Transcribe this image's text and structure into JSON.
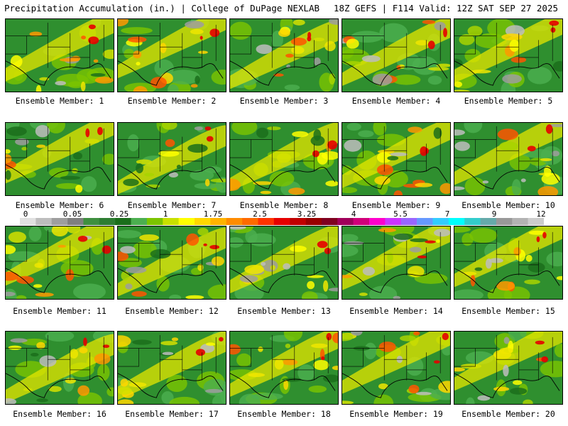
{
  "header": {
    "title": "Precipitation Accumulation (in.) | College of DuPage NEXLAB",
    "run_info": "18Z GEFS | F114 Valid: 12Z SAT SEP 27 2025"
  },
  "panels": [
    {
      "label": "Ensemble Member: 1"
    },
    {
      "label": "Ensemble Member: 2"
    },
    {
      "label": "Ensemble Member: 3"
    },
    {
      "label": "Ensemble Member: 4"
    },
    {
      "label": "Ensemble Member: 5"
    },
    {
      "label": "Ensemble Member: 6"
    },
    {
      "label": "Ensemble Member: 7"
    },
    {
      "label": "Ensemble Member: 8"
    },
    {
      "label": "Ensemble Member: 9"
    },
    {
      "label": "Ensemble Member: 10"
    },
    {
      "label": "Ensemble Member: 11"
    },
    {
      "label": "Ensemble Member: 12"
    },
    {
      "label": "Ensemble Member: 13"
    },
    {
      "label": "Ensemble Member: 14"
    },
    {
      "label": "Ensemble Member: 15"
    },
    {
      "label": "Ensemble Member: 16"
    },
    {
      "label": "Ensemble Member: 17"
    },
    {
      "label": "Ensemble Member: 18"
    },
    {
      "label": "Ensemble Member: 19"
    },
    {
      "label": "Ensemble Member: 20"
    }
  ],
  "colorbar": {
    "labels": [
      "0",
      "0.05",
      "0.25",
      "1",
      "1.75",
      "2.5",
      "3.25",
      "4",
      "5.5",
      "7",
      "9",
      "12"
    ],
    "colors": [
      "#e0e0e0",
      "#bdbdbd",
      "#9e9e9e",
      "#7f7f7f",
      "#3f8f3f",
      "#2e7d32",
      "#1b6e1b",
      "#4caf50",
      "#7cc400",
      "#c8e000",
      "#ffff00",
      "#ffd700",
      "#ffb300",
      "#ff8c00",
      "#ff6a00",
      "#ff3300",
      "#e60000",
      "#c00000",
      "#990000",
      "#800020",
      "#a0005a",
      "#d1007a",
      "#ff00cc",
      "#cc33ff",
      "#9966ff",
      "#6699ff",
      "#33ccff",
      "#00ffff",
      "#33cccc",
      "#66aaaa",
      "#999999",
      "#b3b3b3",
      "#cccccc"
    ]
  }
}
